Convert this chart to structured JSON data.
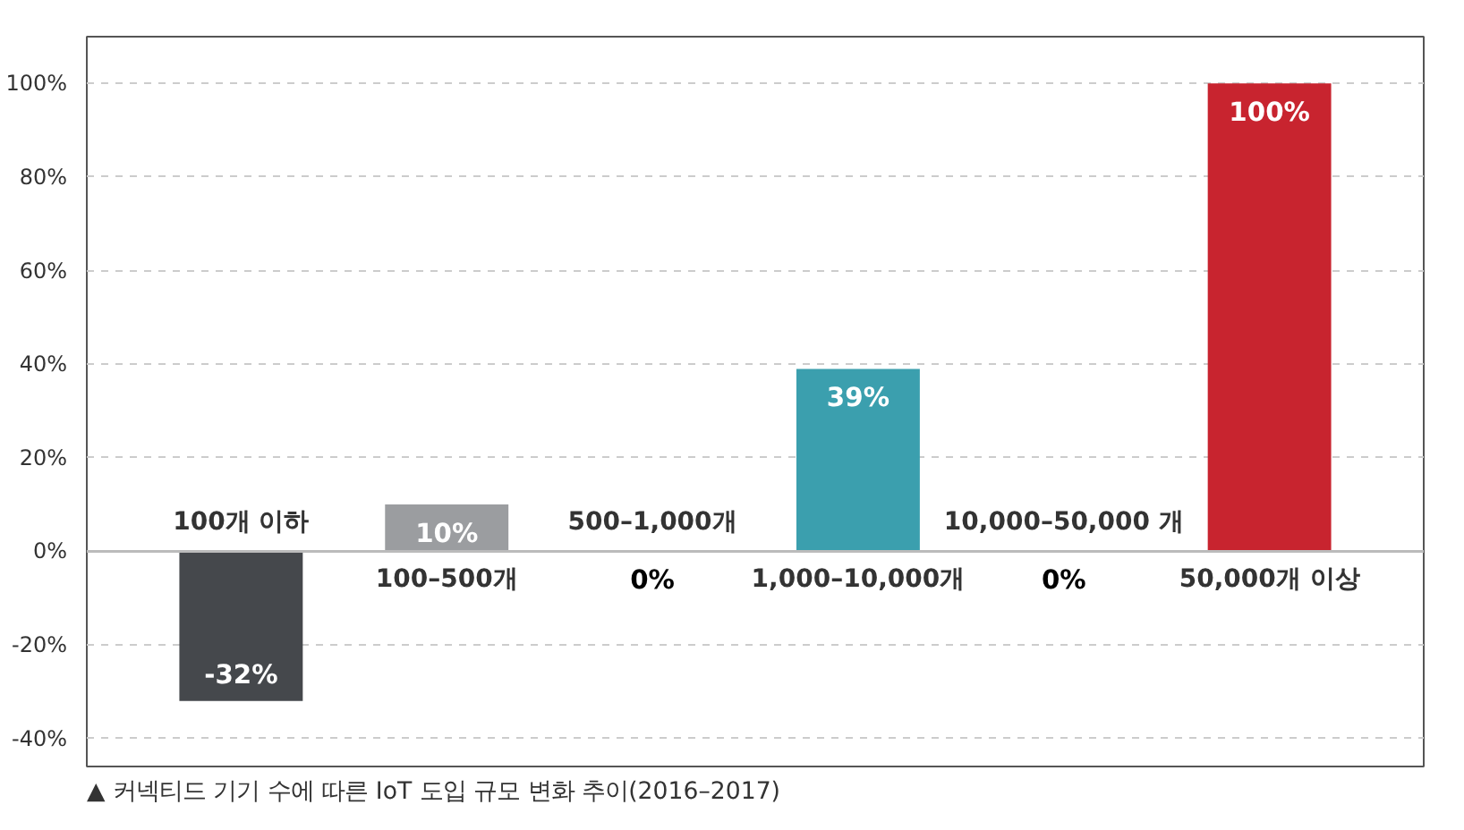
{
  "chart_data": {
    "type": "bar",
    "categories": [
      "100개 이하",
      "100–500개",
      "500–1,000개",
      "1,000–10,000개",
      "10,000–50,000 개",
      "50,000개 이상"
    ],
    "values": [
      -32,
      10,
      0,
      39,
      0,
      100
    ],
    "colors": [
      "#45484c",
      "#9b9da0",
      "#9b9da0",
      "#3b9fae",
      "#3b9fae",
      "#c8242f"
    ],
    "value_labels": [
      "-32%",
      "10%",
      "0%",
      "39%",
      "0%",
      "100%"
    ],
    "ylim": [
      -46,
      110
    ],
    "yticks": [
      {
        "value": -40,
        "label": "-40%"
      },
      {
        "value": -20,
        "label": "-20%"
      },
      {
        "value": 0,
        "label": "0%"
      },
      {
        "value": 20,
        "label": "20%"
      },
      {
        "value": 40,
        "label": "40%"
      },
      {
        "value": 60,
        "label": "60%"
      },
      {
        "value": 80,
        "label": "80%"
      },
      {
        "value": 100,
        "label": "100%"
      }
    ],
    "grid": "y",
    "annotations": [
      "▲ 커넥티드 기기 수에 따른 IoT 도입 규모 변화 추이(2016–2017)"
    ]
  }
}
